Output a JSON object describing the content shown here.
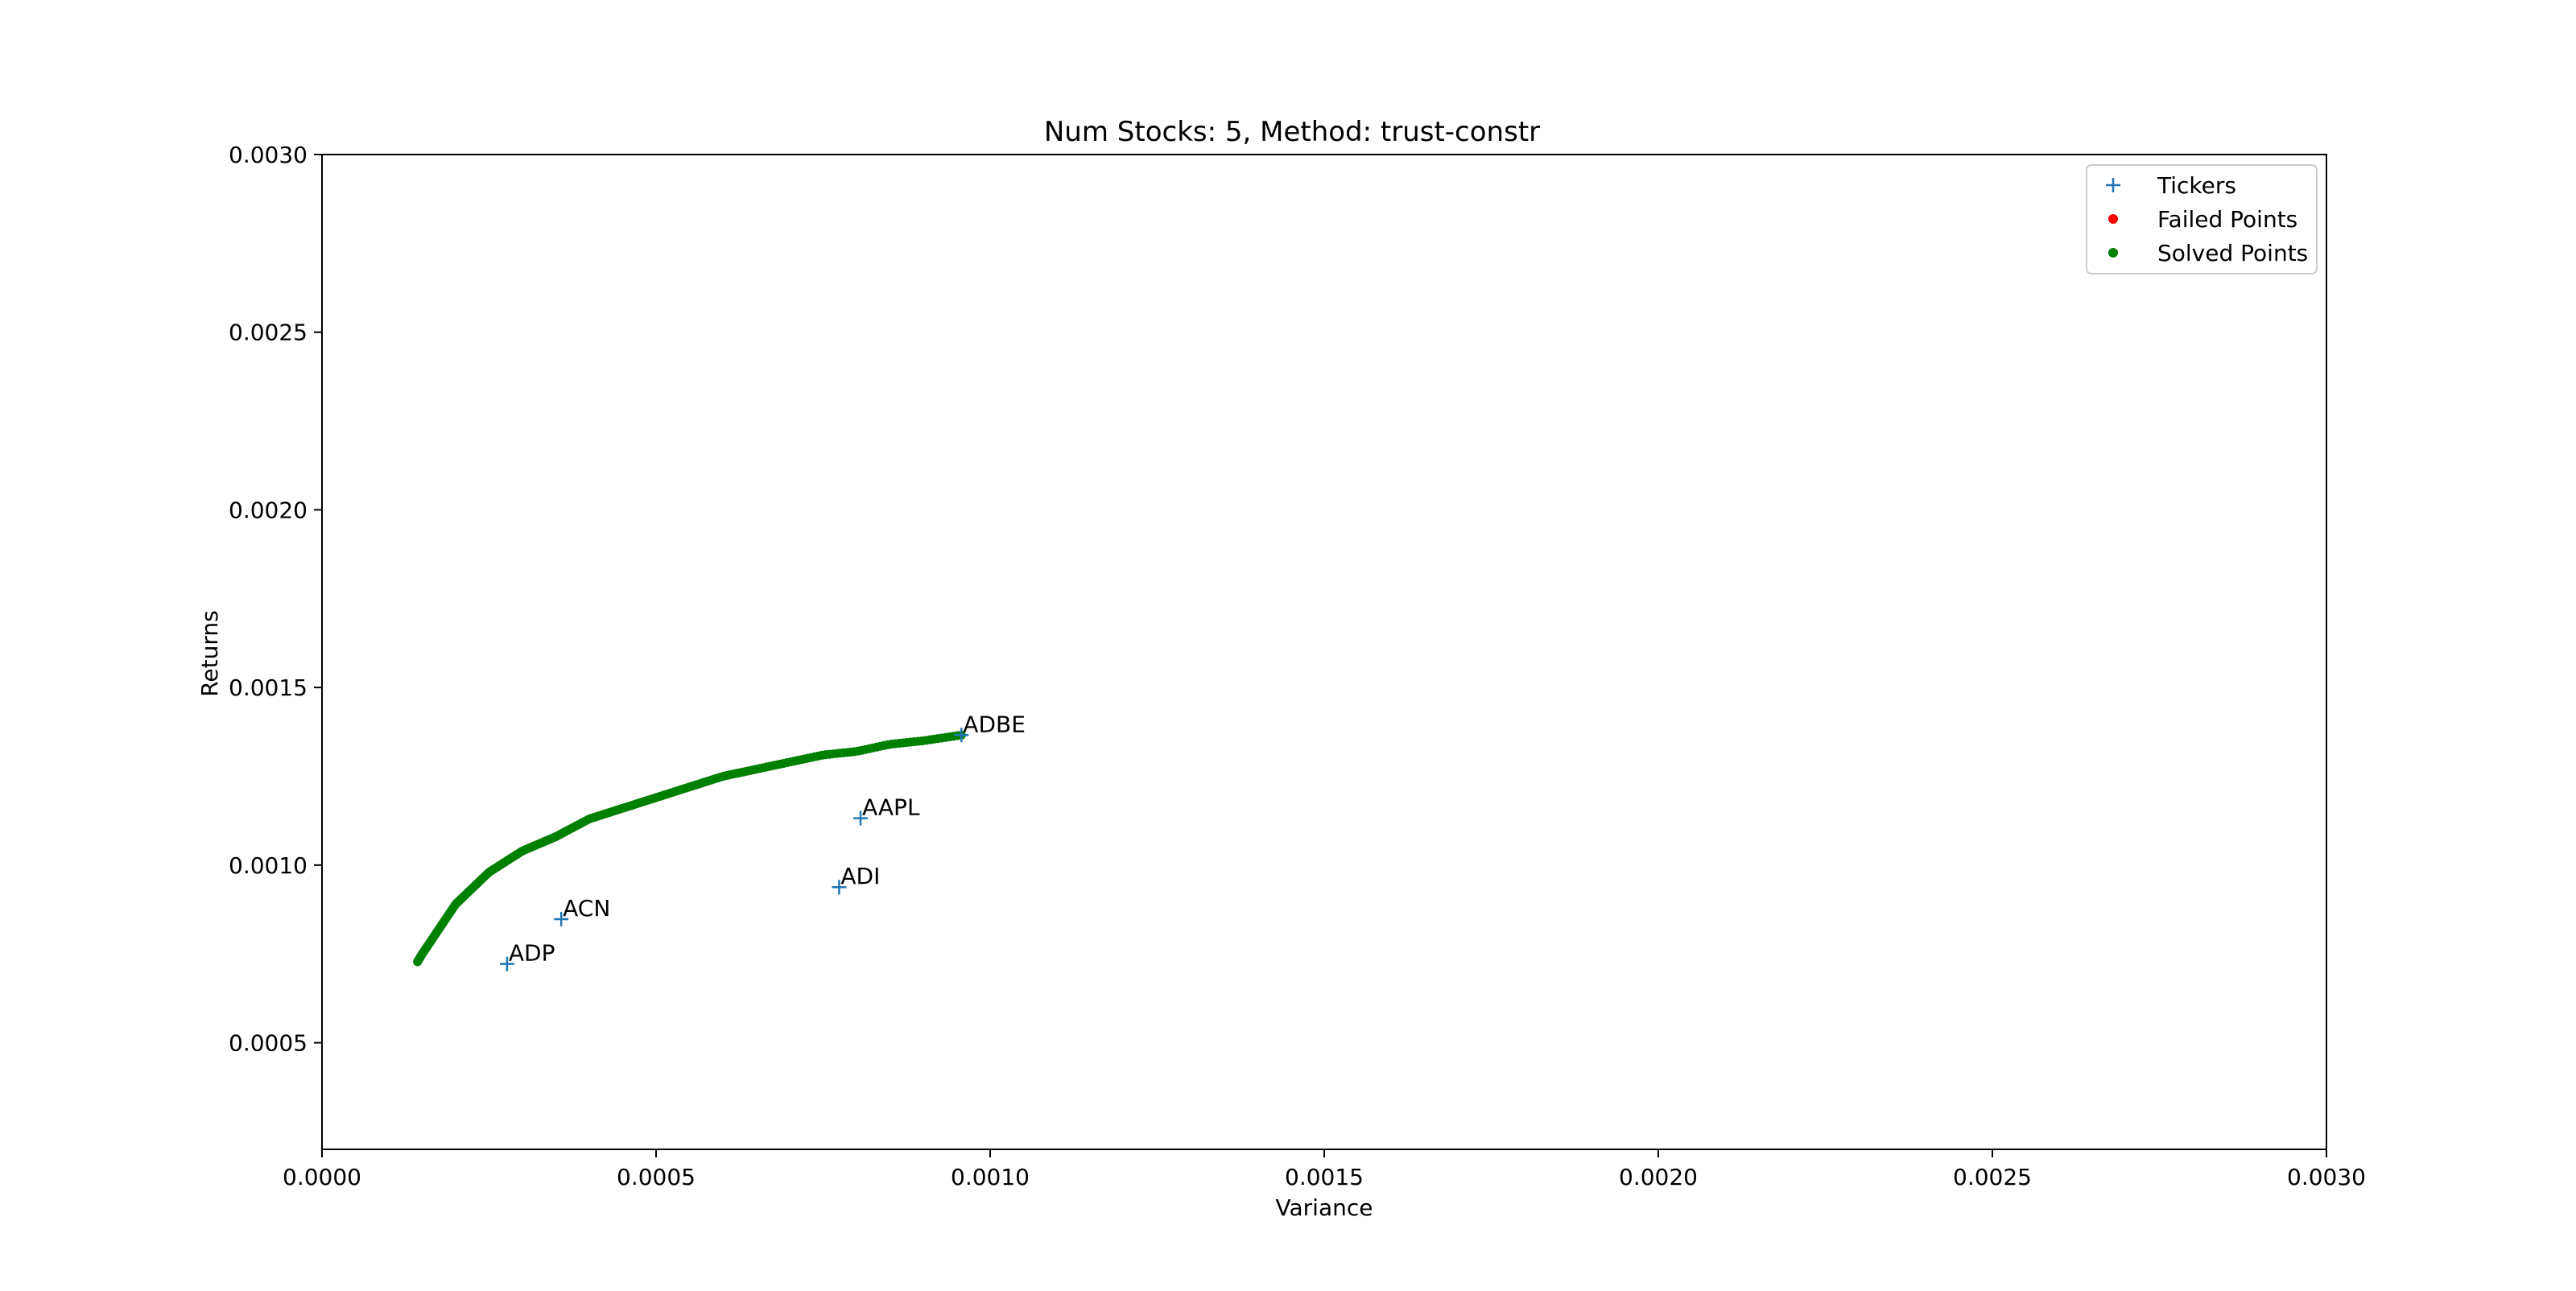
{
  "chart_data": {
    "type": "scatter",
    "title": "Num Stocks: 5, Method: trust-constr",
    "xlabel": "Variance",
    "ylabel": "Returns",
    "xlim": [
      0.0,
      0.003
    ],
    "ylim": [
      0.0002,
      0.003
    ],
    "x_ticks": [
      "0.0000",
      "0.0005",
      "0.0010",
      "0.0015",
      "0.0020",
      "0.0025",
      "0.0030"
    ],
    "y_ticks": [
      "0.0005",
      "0.0010",
      "0.0015",
      "0.0020",
      "0.0025",
      "0.0030"
    ],
    "grid": false,
    "legend": {
      "position": "top-right",
      "entries": [
        {
          "label": "Tickers",
          "marker": "plus",
          "color": "#1f77b4"
        },
        {
          "label": "Failed Points",
          "marker": "dot",
          "color": "#ff0000"
        },
        {
          "label": "Solved Points",
          "marker": "dot",
          "color": "#008000"
        }
      ]
    },
    "tickers": [
      {
        "name": "AAPL",
        "x": 0.000806,
        "y": 0.001132
      },
      {
        "name": "ADBE",
        "x": 0.000957,
        "y": 0.001366
      },
      {
        "name": "ADI",
        "x": 0.000774,
        "y": 0.000938
      },
      {
        "name": "ACN",
        "x": 0.000358,
        "y": 0.000848
      },
      {
        "name": "ADP",
        "x": 0.000277,
        "y": 0.000722
      }
    ],
    "failed_points": [],
    "solved_points": {
      "count": 220,
      "x": [
        0.000143,
        0.00015,
        0.000175,
        0.0002,
        0.00025,
        0.0003,
        0.00035,
        0.0004,
        0.00045,
        0.0005,
        0.00055,
        0.0006,
        0.00065,
        0.0007,
        0.00075,
        0.0008,
        0.00085,
        0.0009,
        0.000957
      ],
      "y": [
        0.000728,
        0.00075,
        0.00082,
        0.00089,
        0.00098,
        0.00104,
        0.00108,
        0.00113,
        0.00116,
        0.00119,
        0.00122,
        0.00125,
        0.00127,
        0.00129,
        0.00131,
        0.00132,
        0.00134,
        0.00135,
        0.001366
      ]
    },
    "colors": {
      "tickers": "#1f77b4",
      "failed": "#ff0000",
      "solved": "#008000"
    }
  }
}
